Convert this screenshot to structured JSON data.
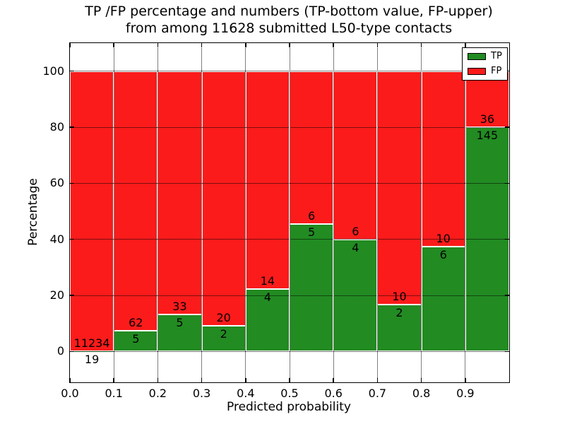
{
  "figure": {
    "title_line1": "TP /FP percentage and numbers (TP-bottom value, FP-upper)",
    "title_line2": "from among 11628 submitted L50-type contacts"
  },
  "axes": {
    "xlabel": "Predicted probability",
    "ylabel": "Percentage",
    "ytick_labels": [
      "0",
      "20",
      "40",
      "60",
      "80",
      "100"
    ],
    "ytick_values": [
      0,
      20,
      40,
      60,
      80,
      100
    ],
    "xtick_labels": [
      "0.0",
      "0.1",
      "0.2",
      "0.3",
      "0.4",
      "0.5",
      "0.6",
      "0.7",
      "0.8",
      "0.9"
    ]
  },
  "legend": {
    "entries": [
      {
        "label": "TP",
        "color": "#228b22"
      },
      {
        "label": "FP",
        "color": "#fb1b1b"
      }
    ]
  },
  "chart_data": {
    "type": "bar",
    "bar_mode": "stacked_percent_to_100",
    "title": "TP /FP percentage and numbers (TP-bottom value, FP-upper) from among 11628 submitted L50-type contacts",
    "xlabel": "Predicted probability",
    "ylabel": "Percentage",
    "xlim": [
      0.0,
      1.0
    ],
    "ylim": [
      -11,
      110
    ],
    "grid": "dotted",
    "legend_position": "upper right",
    "total_submitted": 11628,
    "bin_width": 0.1,
    "bin_edges": [
      0.0,
      0.1,
      0.2,
      0.3,
      0.4,
      0.5,
      0.6,
      0.7,
      0.8,
      0.9,
      1.0
    ],
    "categories": [
      "0.0-0.1",
      "0.1-0.2",
      "0.2-0.3",
      "0.3-0.4",
      "0.4-0.5",
      "0.5-0.6",
      "0.6-0.7",
      "0.7-0.8",
      "0.8-0.9",
      "0.9-1.0"
    ],
    "series": [
      {
        "name": "TP",
        "color": "#228b22",
        "counts": [
          19,
          5,
          5,
          2,
          4,
          5,
          4,
          2,
          6,
          145
        ]
      },
      {
        "name": "FP",
        "color": "#fb1b1b",
        "counts": [
          11234,
          62,
          33,
          20,
          14,
          6,
          6,
          10,
          10,
          36
        ]
      }
    ],
    "tp_percent": [
      0.17,
      7.46,
      13.16,
      9.09,
      22.22,
      45.45,
      40.0,
      16.67,
      37.5,
      80.11
    ]
  }
}
